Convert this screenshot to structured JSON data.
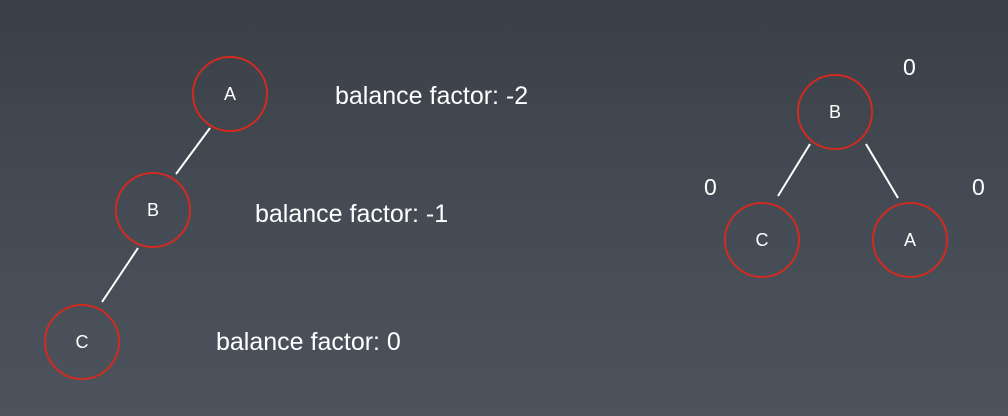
{
  "left_tree": {
    "nodes": {
      "a": "A",
      "b": "B",
      "c": "C"
    },
    "labels": {
      "a": "balance factor: -2",
      "b": "balance factor: -1",
      "c": "balance factor: 0"
    }
  },
  "right_tree": {
    "nodes": {
      "b": "B",
      "c": "C",
      "a": "A"
    },
    "balance_factors": {
      "b": "0",
      "c": "0",
      "a": "0"
    }
  },
  "colors": {
    "node_stroke": "#d12b20",
    "edge": "#ffffff",
    "text": "#ffffff"
  }
}
